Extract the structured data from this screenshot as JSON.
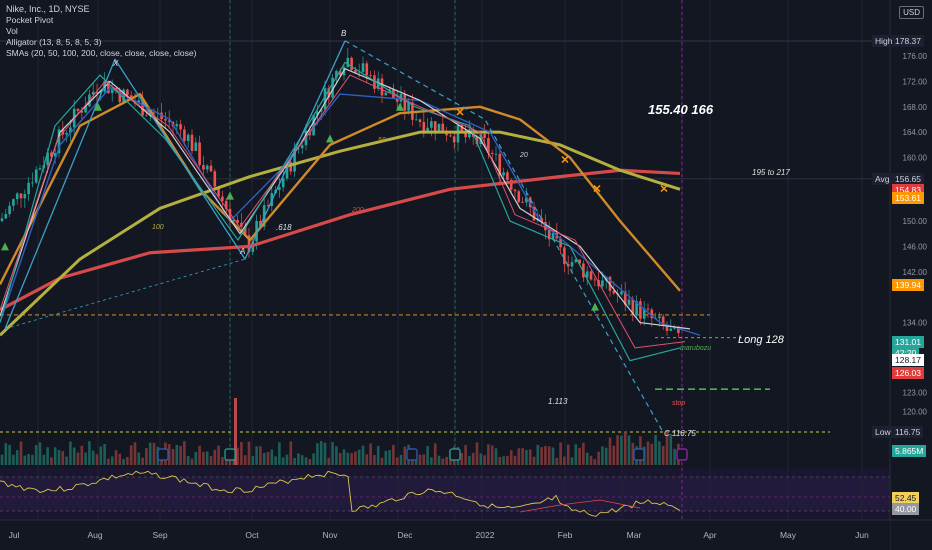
{
  "legend": {
    "title": "Nike, Inc., 1D, NYSE",
    "lines": [
      "Pocket Pivot",
      "Vol",
      "Alligator (13, 8, 5, 8, 5, 3)",
      "SMAs (20, 50, 100, 200, close, close, close, close)"
    ]
  },
  "currency_label": "USD",
  "price_axis": {
    "ticks": [
      {
        "label": "176.00",
        "value": 176
      },
      {
        "label": "172.00",
        "value": 172
      },
      {
        "label": "168.00",
        "value": 168
      },
      {
        "label": "164.00",
        "value": 164
      },
      {
        "label": "160.00",
        "value": 160
      },
      {
        "label": "150.00",
        "value": 150
      },
      {
        "label": "146.00",
        "value": 146
      },
      {
        "label": "142.00",
        "value": 142
      },
      {
        "label": "134.00",
        "value": 134
      },
      {
        "label": "123.00",
        "value": 123
      },
      {
        "label": "120.00",
        "value": 120
      }
    ],
    "high": {
      "label": "High",
      "value": "178.37"
    },
    "avg": {
      "label": "Avg",
      "value": "156.65"
    },
    "low": {
      "label": "Low",
      "value": "116.75"
    },
    "tags": [
      {
        "value": "154.83",
        "color": "#e03c3c"
      },
      {
        "value": "153.61",
        "color": "#ff9800"
      },
      {
        "value": "139.94",
        "color": "#ff9800"
      },
      {
        "value": "131.01",
        "color": "#26a69a"
      },
      {
        "value": "42:20",
        "color": "#26a69a"
      },
      {
        "value": "128.17",
        "color": "#ffffff"
      },
      {
        "value": "126.03",
        "color": "#e03c3c"
      },
      {
        "value": "5.865M",
        "color": "#26a69a"
      },
      {
        "value": "52.45",
        "color": "#f0d05a"
      },
      {
        "value": "40.00",
        "color": "#9598a1"
      }
    ]
  },
  "time_axis": [
    "Jul",
    "Aug",
    "Sep",
    "Oct",
    "Nov",
    "Dec",
    "2022",
    "Feb",
    "Mar",
    "Apr",
    "May",
    "Jun"
  ],
  "annotations": {
    "targets": "155.40  166",
    "range": "195 to 217",
    "long": "Long 128",
    "fib_ret": ".618",
    "fib_ext": "1.113",
    "point_a": "A",
    "point_b": "B",
    "point_x": "X",
    "point_c": "C 116.75",
    "sma20": "20",
    "sma50": "50",
    "sma100": "100",
    "sma200": "200",
    "marubozu": "marubozu",
    "stop": "stop"
  },
  "chart_data": {
    "type": "line",
    "title": "Nike, Inc., 1D, NYSE",
    "y_scale": "price",
    "ylim": [
      116,
      180
    ],
    "x": [
      "Jul",
      "Aug",
      "Sep",
      "Oct",
      "Nov",
      "Dec",
      "2022",
      "Feb",
      "Mar"
    ],
    "series": [
      {
        "name": "close",
        "values": [
          150,
          172,
          164,
          146,
          176,
          166,
          162,
          145,
          131
        ]
      }
    ],
    "levels": {
      "high": 178.37,
      "avg": 156.65,
      "low": 116.75,
      "entry": 128.17,
      "stop": 123.5
    },
    "rsi": {
      "value": 52.45,
      "levels": [
        70,
        50,
        40
      ]
    }
  }
}
